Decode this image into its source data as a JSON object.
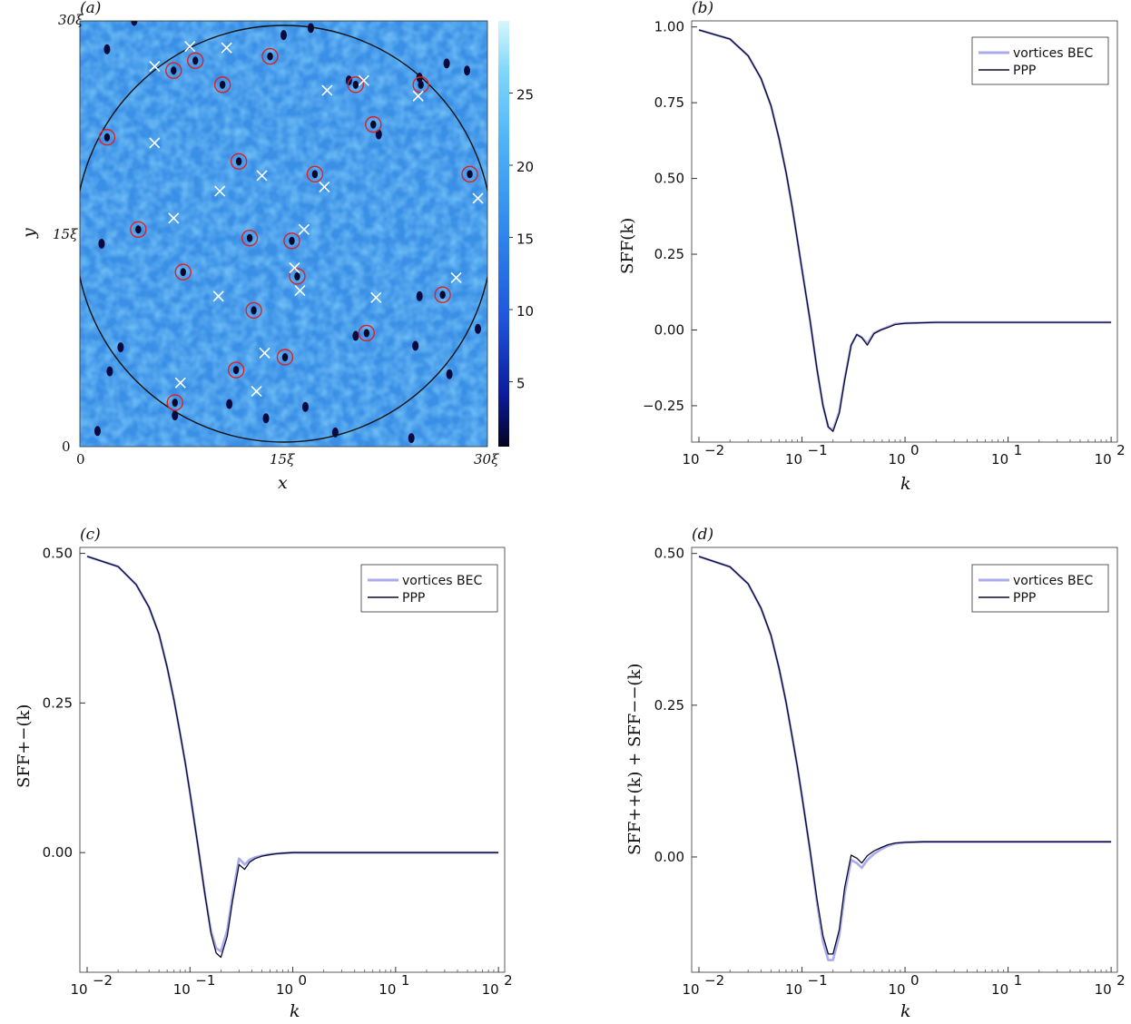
{
  "chart_data": [
    {
      "type": "heatmap",
      "panel_label": "(a)",
      "xlabel": "x",
      "ylabel": "y",
      "x_ticks": [
        "0",
        "15ξ",
        "30ξ"
      ],
      "y_ticks": [
        "0",
        "15ξ",
        "30ξ"
      ],
      "colorbar_ticks": [
        "5",
        "10",
        "15",
        "20",
        "25"
      ],
      "colorbar_range": [
        0.5,
        30
      ],
      "domain": [
        0,
        30
      ],
      "circle": {
        "cx": 15,
        "cy": 15,
        "r": 15
      },
      "vortices_plus": [
        [
          14,
          27.5
        ],
        [
          6.9,
          26.5
        ],
        [
          8.5,
          27.2
        ],
        [
          10.5,
          25.5
        ],
        [
          20.3,
          25.5
        ],
        [
          25.1,
          25.5
        ],
        [
          21.6,
          22.7
        ],
        [
          2,
          21.8
        ],
        [
          11.7,
          20.1
        ],
        [
          17.3,
          19.2
        ],
        [
          28.7,
          19.2
        ],
        [
          4.3,
          15.3
        ],
        [
          12.5,
          14.7
        ],
        [
          15.6,
          14.5
        ],
        [
          7.6,
          12.3
        ],
        [
          16,
          12
        ],
        [
          26.7,
          10.7
        ],
        [
          12.8,
          9.6
        ],
        [
          21.1,
          8
        ],
        [
          15.1,
          6.3
        ],
        [
          11.5,
          5.4
        ],
        [
          7,
          3.1
        ]
      ],
      "vortices_minus": [
        [
          8.1,
          28.2
        ],
        [
          10.8,
          28.1
        ],
        [
          5.5,
          26.8
        ],
        [
          24.9,
          24.7
        ],
        [
          18.2,
          25.1
        ],
        [
          20.9,
          25.8
        ],
        [
          5.5,
          21.4
        ],
        [
          13.4,
          19.1
        ],
        [
          10.3,
          18
        ],
        [
          18,
          18.3
        ],
        [
          29.3,
          17.5
        ],
        [
          6.9,
          16.1
        ],
        [
          16.5,
          15.3
        ],
        [
          15.8,
          12.6
        ],
        [
          16.2,
          11
        ],
        [
          10.2,
          10.6
        ],
        [
          21.8,
          10.5
        ],
        [
          27.7,
          11.9
        ],
        [
          13.6,
          6.6
        ],
        [
          7.4,
          4.5
        ],
        [
          13,
          3.9
        ]
      ],
      "dark_spots": [
        [
          4,
          30
        ],
        [
          2,
          28
        ],
        [
          15,
          29
        ],
        [
          17,
          29.5
        ],
        [
          25,
          26
        ],
        [
          27,
          27
        ],
        [
          19.8,
          25.8
        ],
        [
          28.5,
          26.5
        ],
        [
          22,
          22
        ],
        [
          1.6,
          14.3
        ],
        [
          3,
          7
        ],
        [
          2.2,
          5.3
        ],
        [
          1.3,
          1.1
        ],
        [
          20.3,
          7.8
        ],
        [
          24.7,
          7.1
        ],
        [
          27.2,
          5.1
        ],
        [
          29.3,
          8.3
        ],
        [
          18.8,
          1
        ],
        [
          24.4,
          0.6
        ],
        [
          7,
          2.2
        ],
        [
          11,
          3
        ],
        [
          13.7,
          2
        ],
        [
          16.6,
          2.8
        ],
        [
          25,
          10.6
        ]
      ]
    },
    {
      "type": "line",
      "panel_label": "(b)",
      "xlabel": "k",
      "ylabel": "SFF(k)",
      "xscale": "log",
      "xlim": [
        0.0085,
        115
      ],
      "ylim": [
        -0.37,
        1.02
      ],
      "x_ticks": [
        0.01,
        0.1,
        1,
        10,
        100
      ],
      "y_ticks": [
        "1.00",
        "0.75",
        "0.50",
        "0.25",
        "0.00",
        "−0.25"
      ],
      "y_tick_values": [
        1.0,
        0.75,
        0.5,
        0.25,
        0.0,
        -0.25
      ],
      "legend": [
        "vortices BEC",
        "PPP"
      ],
      "series": [
        {
          "name": "vortices BEC",
          "x": [
            0.01,
            0.02,
            0.03,
            0.04,
            0.05,
            0.06,
            0.07,
            0.08,
            0.09,
            0.1,
            0.12,
            0.14,
            0.16,
            0.18,
            0.2,
            0.23,
            0.26,
            0.3,
            0.34,
            0.38,
            0.43,
            0.5,
            0.58,
            0.68,
            0.8,
            1,
            1.5,
            2,
            3,
            5,
            10,
            30,
            100
          ],
          "y": [
            0.99,
            0.96,
            0.905,
            0.83,
            0.74,
            0.63,
            0.52,
            0.41,
            0.3,
            0.2,
            0.03,
            -0.13,
            -0.25,
            -0.32,
            -0.33,
            -0.27,
            -0.16,
            -0.05,
            -0.015,
            -0.025,
            -0.045,
            -0.01,
            0.0,
            0.01,
            0.02,
            0.022,
            0.024,
            0.025,
            0.025,
            0.025,
            0.025,
            0.025,
            0.025
          ]
        },
        {
          "name": "PPP",
          "x": [
            0.01,
            0.02,
            0.03,
            0.04,
            0.05,
            0.06,
            0.07,
            0.08,
            0.09,
            0.1,
            0.12,
            0.14,
            0.16,
            0.18,
            0.2,
            0.23,
            0.26,
            0.3,
            0.34,
            0.38,
            0.43,
            0.5,
            0.58,
            0.68,
            0.8,
            1,
            1.5,
            2,
            3,
            5,
            10,
            30,
            100
          ],
          "y": [
            0.99,
            0.96,
            0.905,
            0.83,
            0.74,
            0.63,
            0.52,
            0.41,
            0.3,
            0.2,
            0.03,
            -0.13,
            -0.25,
            -0.32,
            -0.335,
            -0.275,
            -0.165,
            -0.05,
            -0.015,
            -0.025,
            -0.05,
            -0.012,
            0.0,
            0.008,
            0.018,
            0.022,
            0.024,
            0.025,
            0.025,
            0.025,
            0.025,
            0.025,
            0.025
          ]
        }
      ]
    },
    {
      "type": "line",
      "panel_label": "(c)",
      "xlabel": "k",
      "ylabel": "SFF+−(k)",
      "xscale": "log",
      "xlim": [
        0.0085,
        115
      ],
      "ylim": [
        -0.2,
        0.51
      ],
      "x_ticks": [
        0.01,
        0.1,
        1,
        10,
        100
      ],
      "y_ticks": [
        "0.50",
        "0.25",
        "0.00"
      ],
      "y_tick_values": [
        0.5,
        0.25,
        0.0
      ],
      "legend": [
        "vortices BEC",
        "PPP"
      ],
      "series": [
        {
          "name": "vortices BEC",
          "x": [
            0.01,
            0.02,
            0.03,
            0.04,
            0.05,
            0.06,
            0.07,
            0.08,
            0.09,
            0.1,
            0.12,
            0.14,
            0.16,
            0.18,
            0.2,
            0.23,
            0.26,
            0.3,
            0.34,
            0.38,
            0.43,
            0.5,
            0.58,
            0.68,
            0.8,
            1,
            1.5,
            2,
            3,
            5,
            10,
            30,
            100
          ],
          "y": [
            0.495,
            0.478,
            0.448,
            0.41,
            0.365,
            0.31,
            0.255,
            0.2,
            0.15,
            0.1,
            0.01,
            -0.07,
            -0.13,
            -0.16,
            -0.165,
            -0.13,
            -0.07,
            -0.01,
            -0.02,
            -0.012,
            -0.008,
            -0.005,
            -0.003,
            -0.002,
            -0.001,
            0,
            0,
            0,
            0,
            0,
            0,
            0,
            0
          ]
        },
        {
          "name": "PPP",
          "x": [
            0.01,
            0.02,
            0.03,
            0.04,
            0.05,
            0.06,
            0.07,
            0.08,
            0.09,
            0.1,
            0.12,
            0.14,
            0.16,
            0.18,
            0.2,
            0.23,
            0.26,
            0.3,
            0.34,
            0.38,
            0.43,
            0.5,
            0.58,
            0.68,
            0.8,
            1,
            1.5,
            2,
            3,
            5,
            10,
            30,
            100
          ],
          "y": [
            0.495,
            0.478,
            0.448,
            0.41,
            0.365,
            0.31,
            0.255,
            0.2,
            0.15,
            0.1,
            0.01,
            -0.07,
            -0.135,
            -0.168,
            -0.175,
            -0.14,
            -0.08,
            -0.02,
            -0.028,
            -0.016,
            -0.01,
            -0.006,
            -0.004,
            -0.002,
            -0.001,
            0,
            0,
            0,
            0,
            0,
            0,
            0,
            0
          ]
        }
      ]
    },
    {
      "type": "line",
      "panel_label": "(d)",
      "xlabel": "k",
      "ylabel": "SFF++(k) + SFF−−(k)",
      "xscale": "log",
      "xlim": [
        0.0085,
        115
      ],
      "ylim": [
        -0.19,
        0.51
      ],
      "x_ticks": [
        0.01,
        0.1,
        1,
        10,
        100
      ],
      "y_ticks": [
        "0.50",
        "0.25",
        "0.00"
      ],
      "y_tick_values": [
        0.5,
        0.25,
        0.0
      ],
      "legend": [
        "vortices BEC",
        "PPP"
      ],
      "series": [
        {
          "name": "vortices BEC",
          "x": [
            0.01,
            0.02,
            0.03,
            0.04,
            0.05,
            0.06,
            0.07,
            0.08,
            0.09,
            0.1,
            0.12,
            0.14,
            0.16,
            0.18,
            0.2,
            0.23,
            0.26,
            0.3,
            0.34,
            0.38,
            0.43,
            0.5,
            0.58,
            0.68,
            0.8,
            1,
            1.5,
            2,
            3,
            5,
            10,
            30,
            100
          ],
          "y": [
            0.495,
            0.478,
            0.45,
            0.41,
            0.365,
            0.31,
            0.255,
            0.2,
            0.15,
            0.1,
            0.01,
            -0.075,
            -0.14,
            -0.17,
            -0.17,
            -0.13,
            -0.06,
            -0.005,
            -0.01,
            -0.018,
            -0.005,
            0.005,
            0.012,
            0.018,
            0.022,
            0.024,
            0.025,
            0.025,
            0.025,
            0.025,
            0.025,
            0.025,
            0.025
          ]
        },
        {
          "name": "PPP",
          "x": [
            0.01,
            0.02,
            0.03,
            0.04,
            0.05,
            0.06,
            0.07,
            0.08,
            0.09,
            0.1,
            0.12,
            0.14,
            0.16,
            0.18,
            0.2,
            0.23,
            0.26,
            0.3,
            0.34,
            0.38,
            0.43,
            0.5,
            0.58,
            0.68,
            0.8,
            1,
            1.5,
            2,
            3,
            5,
            10,
            30,
            100
          ],
          "y": [
            0.495,
            0.478,
            0.45,
            0.41,
            0.365,
            0.31,
            0.255,
            0.2,
            0.15,
            0.1,
            0.01,
            -0.07,
            -0.13,
            -0.16,
            -0.16,
            -0.12,
            -0.05,
            0.003,
            -0.002,
            -0.01,
            0.002,
            0.01,
            0.015,
            0.02,
            0.023,
            0.024,
            0.025,
            0.025,
            0.025,
            0.025,
            0.025,
            0.025,
            0.025
          ]
        }
      ]
    }
  ],
  "colors": {
    "vortices_bec": "#aaaaee",
    "ppp": "#0a0a2a",
    "plus_marker": "#e02020",
    "minus_marker": "#ffffff",
    "field_base": "#3a8fe6",
    "field_light": "#8fd0fb"
  }
}
